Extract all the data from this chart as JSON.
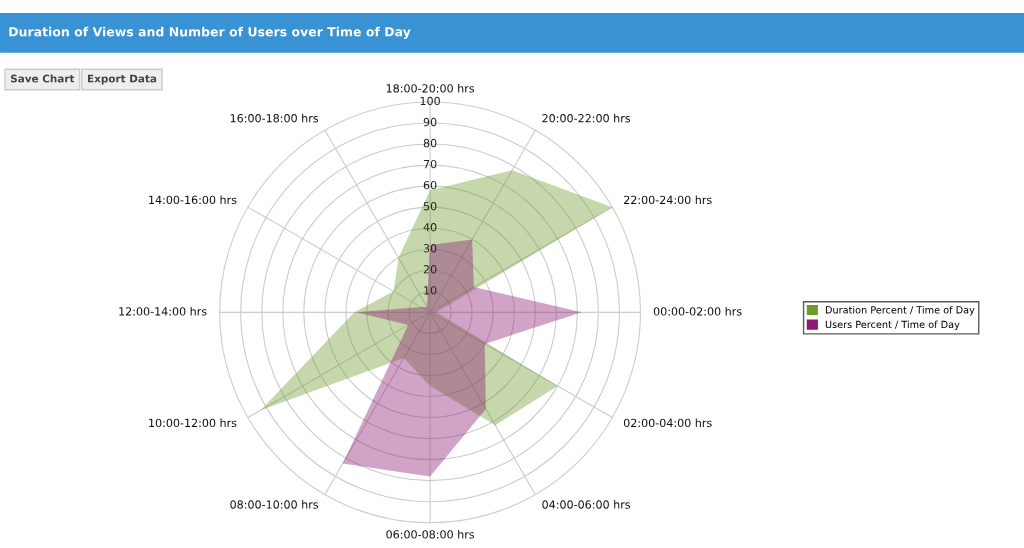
{
  "chart_data": {
    "type": "radar",
    "title": "Duration of Views and Number of Users over Time of Day",
    "annotations": [
      "Save Chart",
      "Export Data"
    ],
    "categories": [
      "18:00-20:00 hrs",
      "20:00-22:00 hrs",
      "22:00-24:00 hrs",
      "00:00-02:00 hrs",
      "02:00-04:00 hrs",
      "04:00-06:00 hrs",
      "06:00-08:00 hrs",
      "08:00-10:00 hrs",
      "10:00-12:00 hrs",
      "12:00-14:00 hrs",
      "14:00-16:00 hrs",
      "16:00-18:00 hrs"
    ],
    "series": [
      {
        "name": "Duration Percent / Time of Day",
        "color": "#6d9b2c",
        "values": [
          58,
          78,
          100,
          3,
          70,
          62,
          35,
          25,
          93,
          36,
          20,
          30
        ]
      },
      {
        "name": "Users Percent / Time of Day",
        "color": "#8b1a74",
        "values": [
          32,
          40,
          24,
          72,
          30,
          53,
          78,
          83,
          12,
          35,
          5,
          3
        ]
      }
    ],
    "ylim": [
      0,
      100
    ],
    "yticks": [
      10,
      20,
      30,
      40,
      50,
      60,
      70,
      80,
      90,
      100
    ],
    "grid": true,
    "legend": "right"
  }
}
